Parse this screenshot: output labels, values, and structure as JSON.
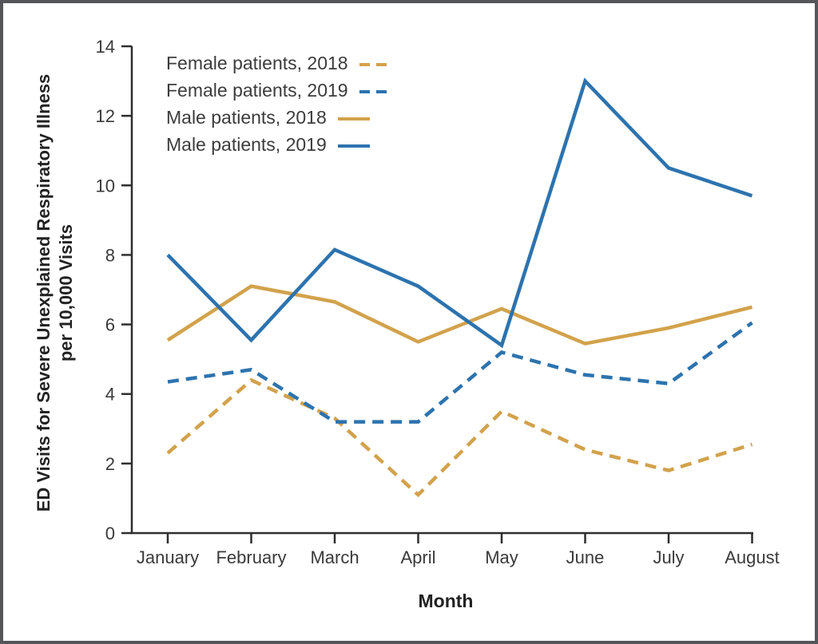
{
  "figure": {
    "x_axis_title": "Month",
    "y_axis_title_line1": "ED Visits for Severe Unexplained Respiratory Illness",
    "y_axis_title_line2": "per 10,000 Visits"
  },
  "colors": {
    "tan": "#d2a24c",
    "blue": "#2d73ae",
    "axis": "#2e2e2e",
    "border": "#55565a",
    "text": "#3a3a3a"
  },
  "chart_data": {
    "type": "line",
    "title": "",
    "xlabel": "Month",
    "ylabel": "ED Visits for Severe Unexplained Respiratory Illness per 10,000 Visits",
    "x_categories": [
      "January",
      "February",
      "March",
      "April",
      "May",
      "June",
      "July",
      "August"
    ],
    "ylim": [
      0,
      14
    ],
    "y_ticks": [
      0,
      2,
      4,
      6,
      8,
      10,
      12,
      14
    ],
    "grid": false,
    "legend_position": "top-left-inside",
    "axis_color": "#2e2e2e",
    "series": [
      {
        "name": "Female patients, 2018",
        "color": "#d2a24c",
        "style": "dashed",
        "values": [
          2.3,
          4.4,
          3.3,
          1.1,
          3.5,
          2.4,
          1.8,
          2.55
        ]
      },
      {
        "name": "Female patients, 2019",
        "color": "#2d73ae",
        "style": "dashed",
        "values": [
          4.35,
          4.7,
          3.2,
          3.2,
          5.2,
          4.55,
          4.3,
          6.05
        ]
      },
      {
        "name": "Male patients, 2018",
        "color": "#d2a24c",
        "style": "solid",
        "values": [
          5.55,
          7.1,
          6.65,
          5.5,
          6.45,
          5.45,
          5.9,
          6.5
        ]
      },
      {
        "name": "Male patients, 2019",
        "color": "#2d73ae",
        "style": "solid",
        "values": [
          8.0,
          5.55,
          8.15,
          7.1,
          5.4,
          13.0,
          10.5,
          9.7
        ]
      }
    ]
  }
}
